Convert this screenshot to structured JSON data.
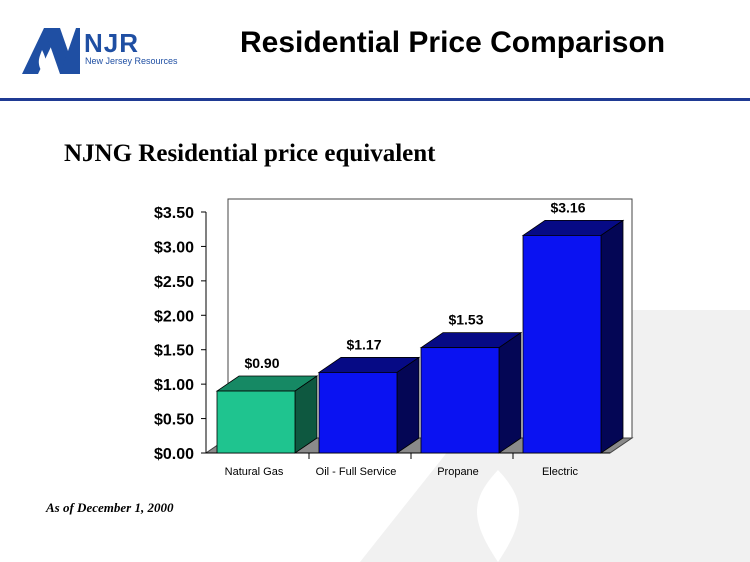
{
  "header": {
    "logo_text": "NJR",
    "logo_subtext": "New Jersey Resources",
    "title": "Residential Price Comparison"
  },
  "footnote": "As of December 1, 2000",
  "colors": {
    "accent": "#1f3a93",
    "natural_gas": "#1fc48f",
    "other_bars": "#0a12f2"
  },
  "chart_data": {
    "type": "bar",
    "title": "NJNG Residential price equivalent",
    "categories": [
      "Natural Gas",
      "Oil - Full Service",
      "Propane",
      "Electric"
    ],
    "values": [
      0.9,
      1.17,
      1.53,
      3.16
    ],
    "data_labels": [
      "$0.90",
      "$1.17",
      "$1.53",
      "$3.16"
    ],
    "y_ticks": [
      "$0.00",
      "$0.50",
      "$1.00",
      "$1.50",
      "$2.00",
      "$2.50",
      "$3.00",
      "$3.50"
    ],
    "ylim": [
      0,
      3.5
    ],
    "xlabel": "",
    "ylabel": "",
    "grid": false,
    "legend": "none"
  }
}
